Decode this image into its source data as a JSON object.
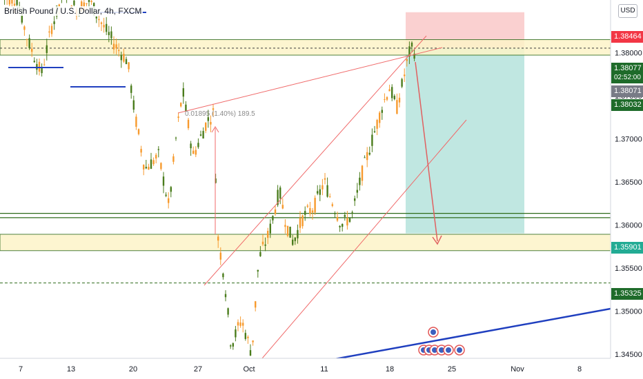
{
  "chart_title": "British Pound / U.S. Dollar, 4h, FXCM",
  "currency_button": "USD",
  "measure_label": "0.01895 (1.40%) 189.5",
  "colors": {
    "up": "#4a7c1c",
    "down": "#f79a2d",
    "zone_fill": "#fdf4c8",
    "zone_line": "#2e6b1a",
    "channel": "#f06a6a",
    "blue_line": "#1f3fbf",
    "target_fill": "#b9e4de",
    "stop_fill": "#f9c8c8",
    "arrow": "#e06060"
  },
  "chart_data": {
    "type": "candlestick",
    "symbol": "GBPUSD",
    "timeframe": "4h",
    "y_range": [
      1.3445,
      1.3885
    ],
    "y_ticks": [
      "1.34500",
      "1.35000",
      "1.35500",
      "1.36000",
      "1.36500",
      "1.37000",
      "1.37500",
      "1.38000"
    ],
    "x_ticks": [
      "7",
      "13",
      "20",
      "27",
      "Oct",
      "11",
      "18",
      "25",
      "Nov",
      "8"
    ],
    "price_labels": [
      {
        "text": "1.38464",
        "color": "#f23645"
      },
      {
        "text": "1.38077",
        "color": "#1e6b2a",
        "sub": "02:52:00"
      },
      {
        "text": "1.38071",
        "color": "#787b86"
      },
      {
        "text": "1.38032",
        "color": "#1e6b2a"
      },
      {
        "text": "1.35901",
        "color": "#22ab94"
      },
      {
        "text": "1.35325",
        "color": "#1e6b2a"
      }
    ],
    "levels": {
      "zone_top": [
        1.3815,
        1.3797
      ],
      "zone_bottom": [
        1.3589,
        1.357
      ],
      "line_1": 1.36133,
      "line_2": 1.36083,
      "dashed_1": 1.38051,
      "dashed_2": 1.35325
    },
    "position": {
      "entry": 1.38051,
      "stop": 1.38464,
      "target": 1.35901
    }
  }
}
